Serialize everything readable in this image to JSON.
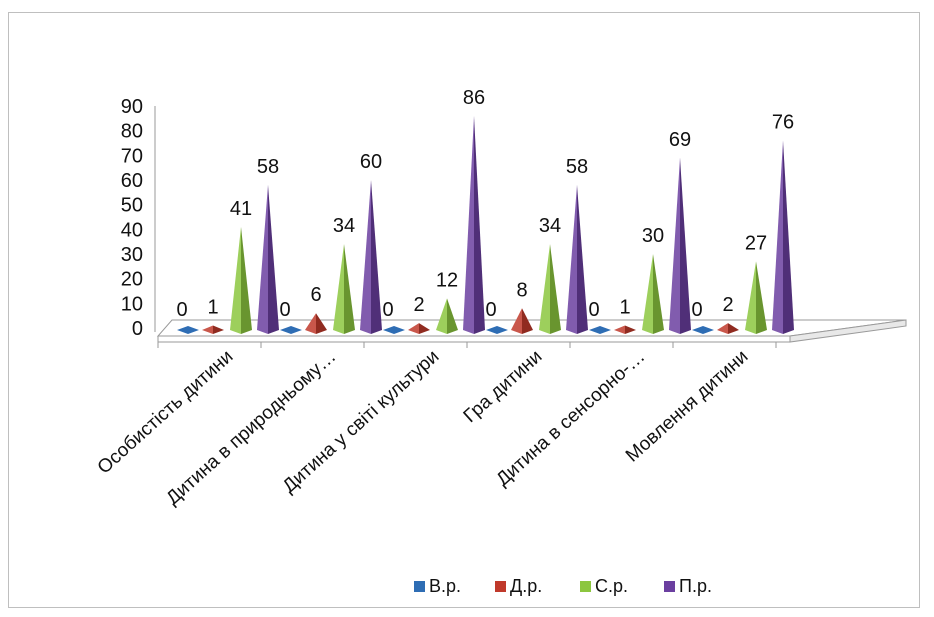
{
  "chart_data": {
    "type": "bar",
    "style": "3d-pyramid",
    "categories": [
      "Особистість дитини",
      "Дитина  в природньому…",
      "Дитина  у світі культури",
      "Гра дитини",
      "Дитина в сенсорно-…",
      "Мовлення  дитини"
    ],
    "series": [
      {
        "name": "В.р.",
        "values": [
          0,
          0,
          0,
          0,
          0,
          0
        ],
        "color": "#2e6db4"
      },
      {
        "name": "Д.р.",
        "values": [
          1,
          6,
          2,
          8,
          1,
          2
        ],
        "color": "#c0392b"
      },
      {
        "name": "С.р.",
        "values": [
          41,
          34,
          12,
          34,
          30,
          27
        ],
        "color": "#8cc63f"
      },
      {
        "name": "П.р.",
        "values": [
          58,
          60,
          86,
          58,
          69,
          76
        ],
        "color": "#6b3fa0"
      }
    ],
    "ylim": [
      0,
      90
    ],
    "yticks": [
      "0",
      "10",
      "20",
      "30",
      "40",
      "50",
      "60",
      "70",
      "80",
      "90"
    ],
    "legend_position": "bottom",
    "grid": false
  }
}
